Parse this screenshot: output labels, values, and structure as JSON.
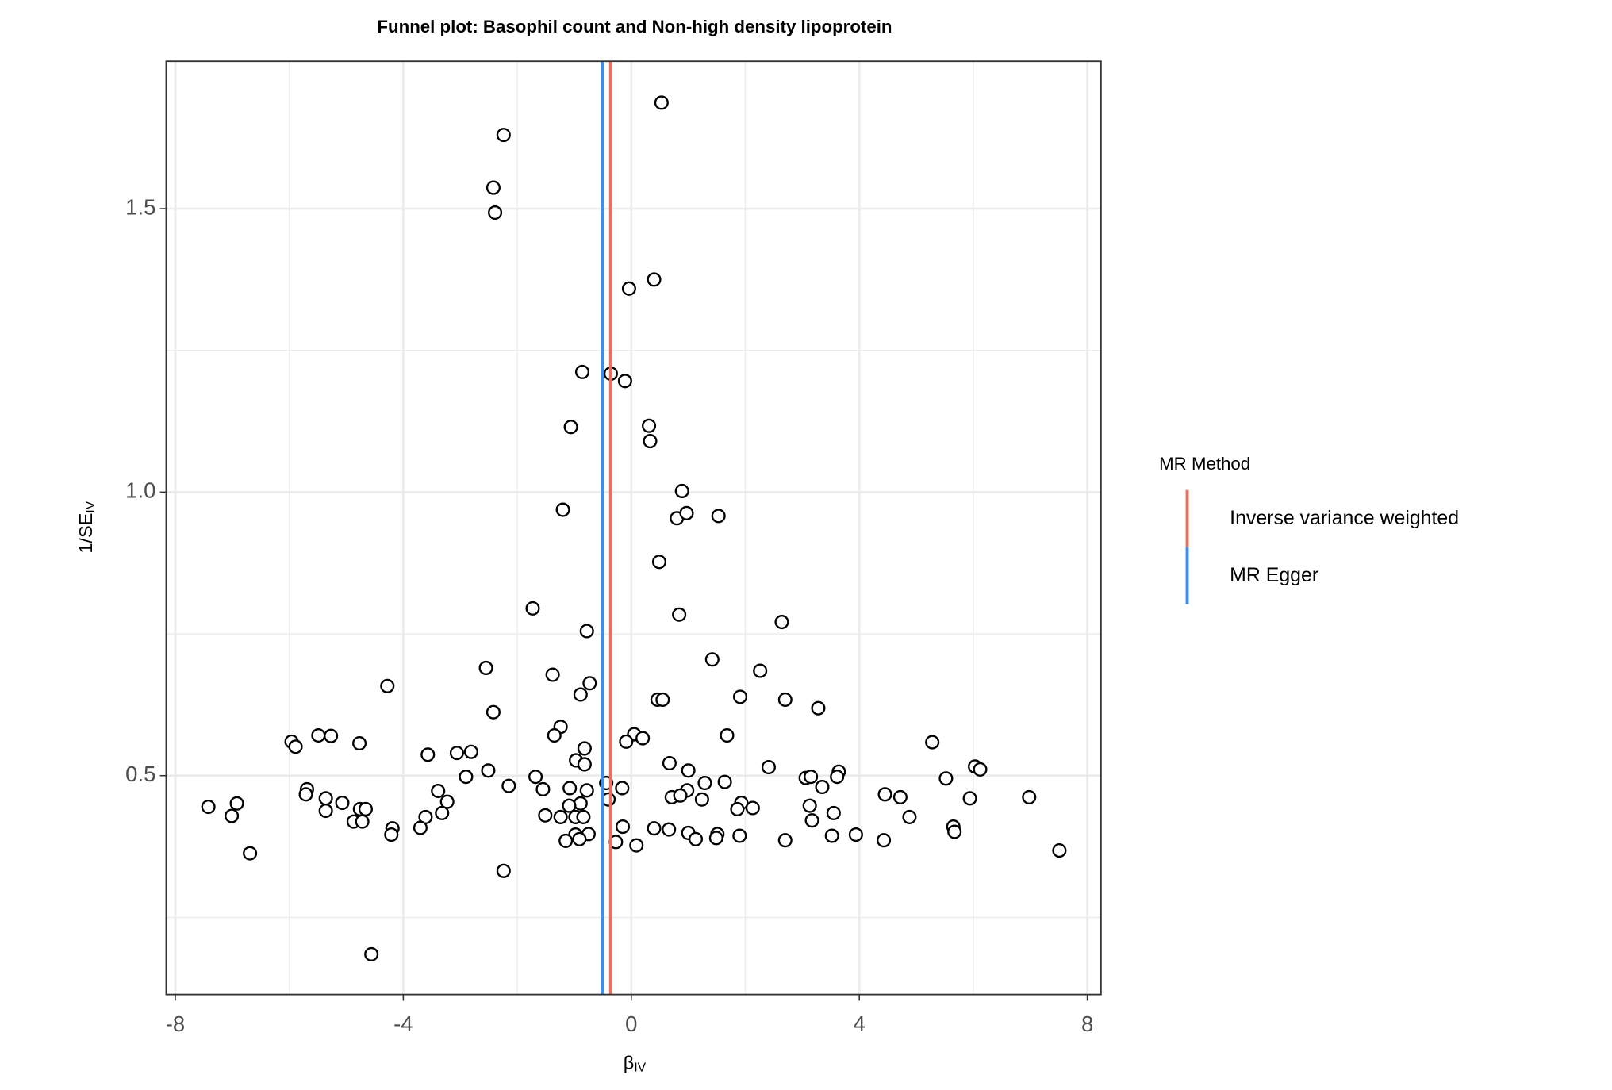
{
  "chart_data": {
    "type": "scatter",
    "title": "Funnel plot: Basophil count and Non-high density lipoprotein",
    "xlabel": {
      "text": "β",
      "subscript": "IV"
    },
    "ylabel": {
      "text": "1/SE",
      "subscript": "IV"
    },
    "xlim": [
      -8.16,
      8.24
    ],
    "ylim": [
      0.114,
      1.76
    ],
    "xticks": [
      -8,
      -4,
      0,
      4,
      8
    ],
    "yticks": [
      0.5,
      {
        "value": 1.0,
        "label": "1.0"
      },
      1.5
    ],
    "minor_xticks": [
      -6,
      -2,
      2,
      6
    ],
    "minor_yticks": [
      0.25,
      0.75,
      1.25
    ],
    "grid": true,
    "marker_color": "#000000",
    "x": [
      0.53,
      -2.24,
      -2.42,
      -2.39,
      0.4,
      -0.04,
      -0.86,
      -0.36,
      -0.11,
      -1.06,
      0.31,
      0.33,
      0.89,
      -1.2,
      0.8,
      0.97,
      1.53,
      0.49,
      -1.73,
      0.84,
      2.64,
      -0.78,
      1.42,
      -2.55,
      2.26,
      -1.38,
      -0.73,
      -4.28,
      -0.89,
      1.91,
      0.46,
      0.55,
      2.7,
      3.28,
      -2.42,
      -1.24,
      0.05,
      -5.49,
      -5.96,
      -5.27,
      -5.89,
      -1.35,
      1.68,
      0.2,
      -0.09,
      -4.77,
      5.28,
      -0.82,
      -3.57,
      -3.06,
      -2.81,
      0.67,
      -0.97,
      -0.82,
      2.41,
      6.03,
      6.12,
      1.0,
      -2.51,
      3.64,
      3.61,
      3.06,
      3.15,
      -2.9,
      5.52,
      -1.68,
      1.64,
      1.29,
      -0.44,
      -2.15,
      3.35,
      -0.16,
      -1.08,
      -1.55,
      -0.78,
      0.98,
      -5.69,
      -3.39,
      -5.71,
      4.45,
      4.72,
      5.94,
      6.98,
      0.71,
      0.86,
      -5.36,
      1.24,
      -0.4,
      -3.23,
      -5.07,
      -6.92,
      -0.89,
      -1.09,
      3.13,
      1.93,
      -7.42,
      1.86,
      2.13,
      -4.76,
      -4.66,
      -5.36,
      -3.32,
      3.55,
      -1.51,
      -1.24,
      -0.98,
      -0.84,
      -3.61,
      -7.01,
      4.88,
      3.17,
      -4.87,
      -4.72,
      -0.15,
      5.65,
      0.4,
      0.66,
      -4.19,
      -3.7,
      5.67,
      -4.21,
      -0.75,
      -0.98,
      1.0,
      1.51,
      1.9,
      3.94,
      3.52,
      1.49,
      1.13,
      -0.91,
      -1.15,
      2.7,
      4.43,
      -0.27,
      0.09,
      -6.69,
      7.51,
      -2.24,
      -4.56
    ],
    "values": [
      1.687,
      1.63,
      1.537,
      1.493,
      1.375,
      1.359,
      1.212,
      1.209,
      1.196,
      1.115,
      1.117,
      1.09,
      1.002,
      0.969,
      0.954,
      0.963,
      0.958,
      0.877,
      0.795,
      0.784,
      0.771,
      0.755,
      0.705,
      0.69,
      0.685,
      0.678,
      0.663,
      0.658,
      0.643,
      0.639,
      0.634,
      0.634,
      0.634,
      0.619,
      0.612,
      0.586,
      0.573,
      0.571,
      0.56,
      0.57,
      0.551,
      0.571,
      0.571,
      0.566,
      0.56,
      0.557,
      0.559,
      0.548,
      0.537,
      0.54,
      0.542,
      0.522,
      0.527,
      0.52,
      0.515,
      0.516,
      0.511,
      0.509,
      0.509,
      0.507,
      0.498,
      0.496,
      0.498,
      0.498,
      0.495,
      0.498,
      0.489,
      0.487,
      0.487,
      0.482,
      0.48,
      0.478,
      0.478,
      0.476,
      0.474,
      0.474,
      0.476,
      0.473,
      0.467,
      0.467,
      0.462,
      0.46,
      0.462,
      0.462,
      0.465,
      0.46,
      0.458,
      0.458,
      0.454,
      0.452,
      0.451,
      0.451,
      0.447,
      0.447,
      0.452,
      0.445,
      0.441,
      0.443,
      0.441,
      0.441,
      0.438,
      0.434,
      0.434,
      0.43,
      0.427,
      0.427,
      0.427,
      0.427,
      0.429,
      0.427,
      0.421,
      0.419,
      0.419,
      0.41,
      0.41,
      0.407,
      0.405,
      0.407,
      0.408,
      0.401,
      0.396,
      0.397,
      0.396,
      0.399,
      0.397,
      0.394,
      0.396,
      0.394,
      0.39,
      0.388,
      0.388,
      0.385,
      0.386,
      0.386,
      0.383,
      0.377,
      0.363,
      0.368,
      0.332,
      0.185
    ],
    "legend_title": "MR Method",
    "lines": [
      {
        "name": "Inverse variance weighted",
        "color": "#e8705f",
        "value": -0.36
      },
      {
        "name": "MR Egger",
        "color": "#3d8ef0",
        "value": -0.51
      }
    ]
  }
}
